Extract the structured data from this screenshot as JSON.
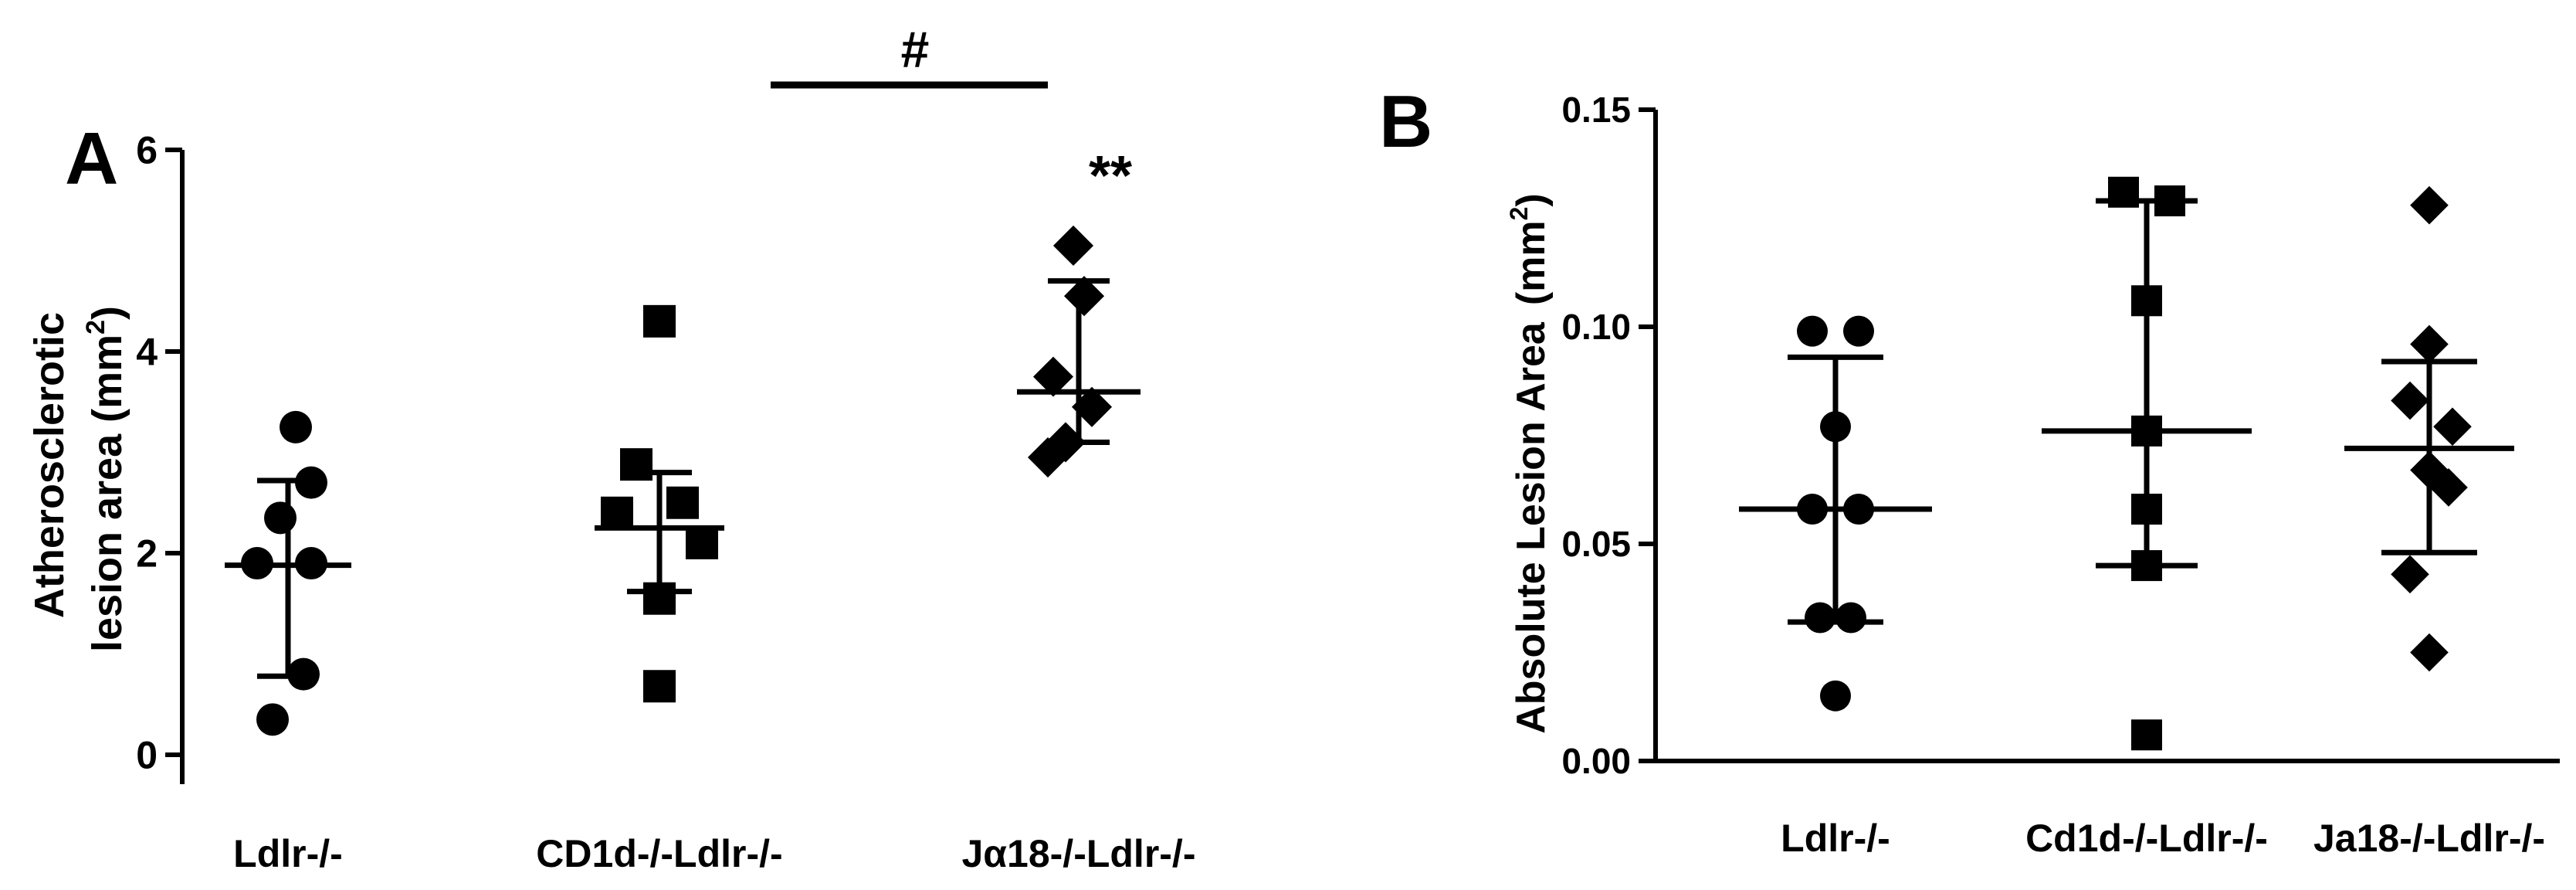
{
  "chart_data": [
    {
      "panel": "A",
      "type": "scatter",
      "ylabel_line1": "Atherosclerotic",
      "ylabel_line2": "lesion area (mm",
      "ylabel_sup": "2",
      "ylabel_close": ")",
      "ylim": [
        0,
        6
      ],
      "yticks": [
        0,
        2,
        4,
        6
      ],
      "ytick_labels": [
        "0",
        "2",
        "4",
        "6"
      ],
      "categories": [
        "Ldlr-/-",
        "CD1d-/-Ldlr-/-",
        "Jα18-/-Ldlr-/-"
      ],
      "series": [
        {
          "category": "Ldlr-/-",
          "marker": "circle",
          "points": [
            3.25,
            2.7,
            2.35,
            1.9,
            1.9,
            0.8,
            0.35
          ],
          "mean": 1.88,
          "error_low": 0.78,
          "error_high": 2.72
        },
        {
          "category": "CD1d-/-Ldlr-/-",
          "marker": "square",
          "points": [
            4.3,
            2.88,
            2.5,
            2.4,
            2.1,
            1.55,
            0.68
          ],
          "mean": 2.25,
          "error_low": 1.62,
          "error_high": 2.8
        },
        {
          "category": "Jα18-/-Ldlr-/-",
          "marker": "diamond",
          "points": [
            5.05,
            4.55,
            3.75,
            3.45,
            3.1,
            2.95
          ],
          "mean": 3.6,
          "error_low": 3.1,
          "error_high": 4.7
        }
      ],
      "annotations": {
        "stars": "**",
        "hash": "#"
      },
      "grid": false
    },
    {
      "panel": "B",
      "type": "scatter",
      "ylabel": "Absolute Lesion Area",
      "ylabel_unit_open": "(mm",
      "ylabel_sup": "2",
      "ylabel_close": ")",
      "ylim": [
        0,
        0.15
      ],
      "yticks": [
        0,
        0.05,
        0.1,
        0.15
      ],
      "ytick_labels": [
        "0.00",
        "0.05",
        "0.10",
        "0.15"
      ],
      "categories": [
        "Ldlr-/-",
        "Cd1d-/-Ldlr-/-",
        "Ja18-/-Ldlr-/-"
      ],
      "series": [
        {
          "category": "Ldlr-/-",
          "marker": "circle",
          "points": [
            0.099,
            0.099,
            0.077,
            0.058,
            0.058,
            0.033,
            0.033,
            0.015
          ],
          "mean": 0.058,
          "error_low": 0.032,
          "error_high": 0.093
        },
        {
          "category": "Cd1d-/-Ldlr-/-",
          "marker": "square",
          "points": [
            0.131,
            0.129,
            0.106,
            0.076,
            0.058,
            0.045,
            0.006
          ],
          "mean": 0.076,
          "error_low": 0.045,
          "error_high": 0.129
        },
        {
          "category": "Ja18-/-Ldlr-/-",
          "marker": "diamond",
          "points": [
            0.128,
            0.096,
            0.083,
            0.077,
            0.067,
            0.063,
            0.043,
            0.025
          ],
          "mean": 0.072,
          "error_low": 0.048,
          "error_high": 0.092
        }
      ],
      "grid": false
    }
  ]
}
